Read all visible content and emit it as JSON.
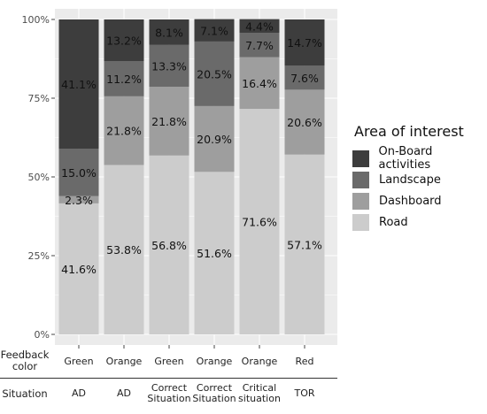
{
  "chart_data": {
    "type": "bar",
    "stacked": true,
    "orientation": "vertical",
    "y_tick_labels": [
      "0%",
      "25%",
      "50%",
      "75%",
      "100%"
    ],
    "ylim": [
      0,
      100
    ],
    "categories": [
      {
        "feedback_color": "Green",
        "situation": "AD"
      },
      {
        "feedback_color": "Orange",
        "situation": "AD"
      },
      {
        "feedback_color": "Green",
        "situation": "Correct Situation"
      },
      {
        "feedback_color": "Orange",
        "situation": "Correct Situation"
      },
      {
        "feedback_color": "Orange",
        "situation": "Critical situation"
      },
      {
        "feedback_color": "Red",
        "situation": "TOR"
      }
    ],
    "series": [
      {
        "name": "Road",
        "color": "#cccccc",
        "values": [
          41.6,
          53.8,
          56.8,
          51.6,
          71.6,
          57.1
        ],
        "labels": [
          "41.6%",
          "53.8%",
          "56.8%",
          "51.6%",
          "71.6%",
          "57.1%"
        ]
      },
      {
        "name": "Dashboard",
        "color": "#9e9e9e",
        "values": [
          2.3,
          21.8,
          21.8,
          20.9,
          16.4,
          20.6
        ],
        "labels": [
          "2.3%",
          "21.8%",
          "21.8%",
          "20.9%",
          "16.4%",
          "20.6%"
        ]
      },
      {
        "name": "Landscape",
        "color": "#6a6a6a",
        "values": [
          15.0,
          11.2,
          13.3,
          20.5,
          7.7,
          7.6
        ],
        "labels": [
          "15.0%",
          "11.2%",
          "13.3%",
          "20.5%",
          "7.7%",
          "7.6%"
        ]
      },
      {
        "name": "On-Board activities",
        "color": "#3d3d3d",
        "values": [
          41.1,
          13.2,
          8.1,
          7.1,
          4.4,
          14.7
        ],
        "labels": [
          "41.1%",
          "13.2%",
          "8.1%",
          "7.1%",
          "4.4%",
          "14.7%"
        ]
      }
    ],
    "legend": {
      "title": "Area of interest",
      "placement": "right",
      "order": [
        "On-Board activities",
        "Landscape",
        "Dashboard",
        "Road"
      ]
    },
    "row_labels": {
      "feedback_color": "Feedback color",
      "situation": "Situation"
    },
    "panel_background": "#ebebeb",
    "grid": true
  }
}
